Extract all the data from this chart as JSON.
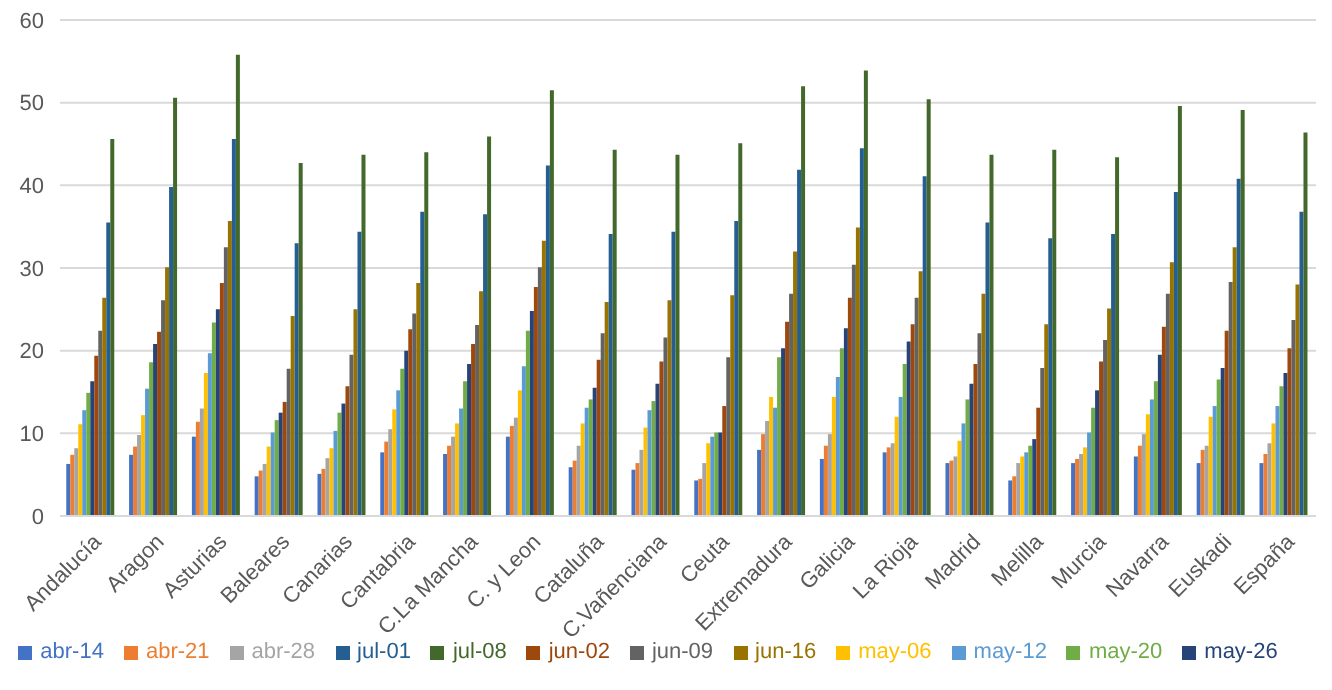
{
  "chart_data": {
    "type": "bar",
    "categories": [
      "Andalucía",
      "Aragon",
      "Asturias",
      "Baleares",
      "Canarias",
      "Cantabria",
      "C.La Mancha",
      "C. y Leon",
      "Cataluña",
      "C.Vañenciana",
      "Ceuta",
      "Extremadura",
      "Galicia",
      "La Rioja",
      "Madrid",
      "Melilla",
      "Murcia",
      "Navarra",
      "Euskadi",
      "España"
    ],
    "series": [
      {
        "name": "abr-14",
        "color": "#4472c4",
        "values": [
          6.3,
          7.4,
          9.6,
          4.8,
          5.1,
          7.7,
          7.5,
          9.6,
          5.9,
          5.6,
          4.3,
          8.0,
          6.9,
          7.7,
          6.4,
          4.3,
          6.4,
          7.2,
          6.4,
          6.4
        ]
      },
      {
        "name": "abr-21",
        "color": "#ed7d31",
        "values": [
          7.4,
          8.4,
          11.4,
          5.5,
          5.7,
          9.0,
          8.5,
          10.9,
          6.7,
          6.4,
          4.5,
          9.9,
          8.5,
          8.3,
          6.7,
          4.8,
          6.9,
          8.5,
          8.0,
          7.5
        ]
      },
      {
        "name": "abr-28",
        "color": "#a5a5a5",
        "values": [
          8.2,
          9.8,
          13.0,
          6.3,
          7.0,
          10.5,
          9.6,
          11.9,
          8.5,
          8.0,
          6.4,
          11.5,
          9.9,
          8.8,
          7.2,
          6.4,
          7.5,
          9.9,
          8.5,
          8.8
        ]
      },
      {
        "name": "may-06",
        "color": "#ffc000",
        "values": [
          11.1,
          12.2,
          17.3,
          8.4,
          8.2,
          12.9,
          11.2,
          15.2,
          11.2,
          10.7,
          8.8,
          14.4,
          14.4,
          12.0,
          9.1,
          7.2,
          8.3,
          12.3,
          12.0,
          11.2
        ]
      },
      {
        "name": "may-12",
        "color": "#5b9bd5",
        "values": [
          12.8,
          15.4,
          19.7,
          10.1,
          10.3,
          15.2,
          13.0,
          18.1,
          13.1,
          12.8,
          9.6,
          13.1,
          16.8,
          14.4,
          11.2,
          7.7,
          10.1,
          14.1,
          13.3,
          13.3
        ]
      },
      {
        "name": "may-20",
        "color": "#70ad47",
        "values": [
          14.9,
          18.6,
          23.4,
          11.6,
          12.5,
          17.8,
          16.3,
          22.4,
          14.1,
          13.9,
          10.1,
          19.2,
          20.3,
          18.4,
          14.1,
          8.5,
          13.1,
          16.3,
          16.5,
          15.7
        ]
      },
      {
        "name": "may-26",
        "color": "#264478",
        "values": [
          16.3,
          20.8,
          25.0,
          12.5,
          13.6,
          20.0,
          18.4,
          24.8,
          15.5,
          16.0,
          10.1,
          20.3,
          22.7,
          21.1,
          16.0,
          9.3,
          15.2,
          19.5,
          17.9,
          17.3
        ]
      },
      {
        "name": "jun-02",
        "color": "#9e480e",
        "values": [
          19.4,
          22.3,
          28.2,
          13.8,
          15.7,
          22.6,
          20.8,
          27.7,
          18.9,
          18.7,
          13.3,
          23.5,
          26.4,
          23.2,
          18.4,
          13.1,
          18.7,
          22.9,
          22.4,
          20.3
        ]
      },
      {
        "name": "jun-09",
        "color": "#636363",
        "values": [
          22.4,
          26.1,
          32.5,
          17.8,
          19.5,
          24.5,
          23.1,
          30.1,
          22.1,
          21.6,
          19.2,
          26.9,
          30.4,
          26.4,
          22.1,
          17.9,
          21.3,
          26.9,
          28.3,
          23.7
        ]
      },
      {
        "name": "jun-16",
        "color": "#997300",
        "values": [
          26.4,
          30.1,
          35.7,
          24.2,
          25.0,
          28.2,
          27.2,
          33.3,
          25.9,
          26.1,
          26.7,
          32.0,
          34.9,
          29.6,
          26.9,
          23.2,
          25.1,
          30.7,
          32.5,
          28.0
        ]
      },
      {
        "name": "jul-01",
        "color": "#255e91",
        "values": [
          35.5,
          39.8,
          45.6,
          33.0,
          34.4,
          36.8,
          36.5,
          42.4,
          34.1,
          34.4,
          35.7,
          41.9,
          44.5,
          41.1,
          35.5,
          33.6,
          34.1,
          39.2,
          40.8,
          36.8
        ]
      },
      {
        "name": "jul-08",
        "color": "#43682b",
        "values": [
          45.6,
          50.6,
          55.8,
          42.7,
          43.7,
          44.0,
          45.9,
          51.5,
          44.3,
          43.7,
          45.1,
          52.0,
          53.9,
          50.4,
          43.7,
          44.3,
          43.4,
          49.6,
          49.1,
          46.4
        ]
      }
    ],
    "ylim": [
      0,
      60
    ],
    "yticks": [
      0,
      10,
      20,
      30,
      40,
      50,
      60
    ],
    "grid": "y",
    "legend": "bottom"
  }
}
